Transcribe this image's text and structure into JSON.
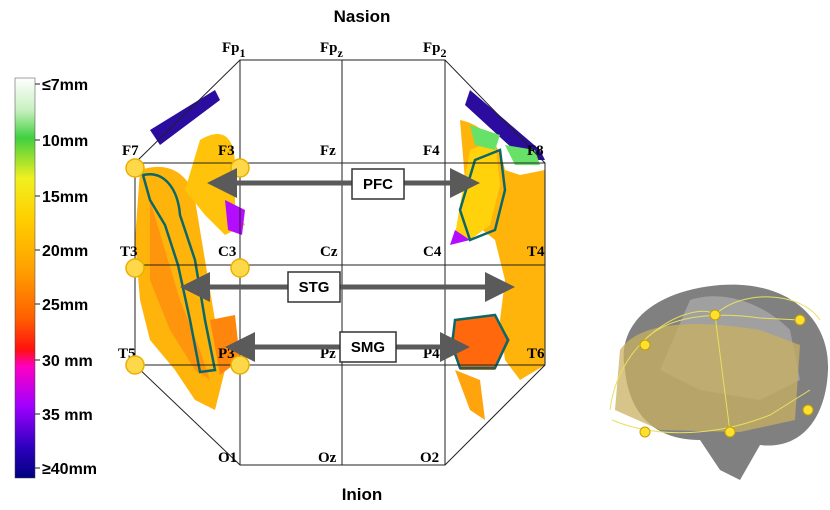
{
  "nasion": "Nasion",
  "inion": "Inion",
  "colorbar": {
    "labels": [
      "≤7mm",
      "10mm",
      "15mm",
      "20mm",
      "25mm",
      "30 mm",
      "35 mm",
      "≥40mm"
    ]
  },
  "electrodes": [
    {
      "label": "Fp",
      "sub": "1"
    },
    {
      "label": "Fp",
      "sub": "z"
    },
    {
      "label": "Fp",
      "sub": "2"
    },
    {
      "label": "F7"
    },
    {
      "label": "F3"
    },
    {
      "label": "Fz"
    },
    {
      "label": "F4"
    },
    {
      "label": "F8"
    },
    {
      "label": "T3"
    },
    {
      "label": "C3"
    },
    {
      "label": "Cz"
    },
    {
      "label": "C4"
    },
    {
      "label": "T4"
    },
    {
      "label": "T5"
    },
    {
      "label": "P3"
    },
    {
      "label": "Pz"
    },
    {
      "label": "P4"
    },
    {
      "label": "T6"
    },
    {
      "label": "O1"
    },
    {
      "label": "Oz"
    },
    {
      "label": "O2"
    }
  ],
  "regions": [
    "PFC",
    "STG",
    "SMG"
  ]
}
